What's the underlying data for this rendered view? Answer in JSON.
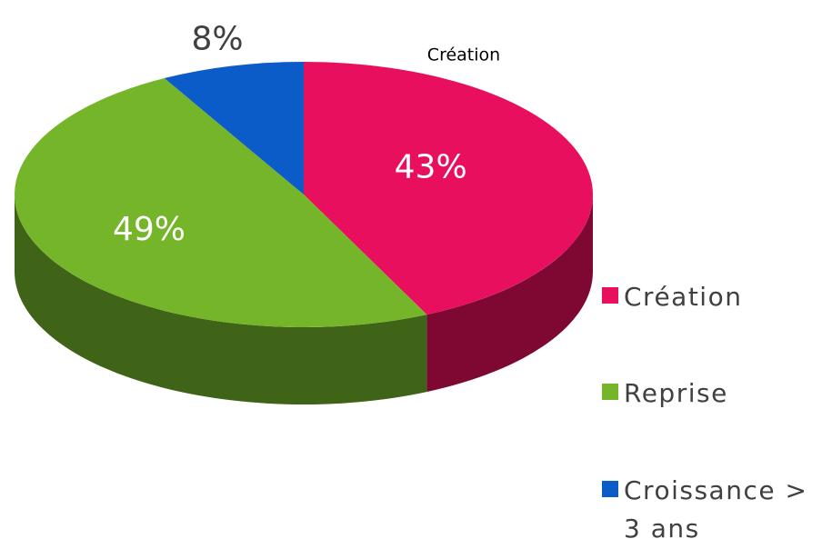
{
  "chart_data": {
    "type": "pie",
    "categories": [
      "Création",
      "Reprise",
      "Croissance > 3 ans"
    ],
    "values": [
      43,
      49,
      8
    ],
    "value_labels": [
      "43%",
      "49%",
      "8%"
    ],
    "colors": [
      "#e8105e",
      "#74b52a",
      "#0b5cc8"
    ],
    "annotation": "Création",
    "legend": "right"
  }
}
